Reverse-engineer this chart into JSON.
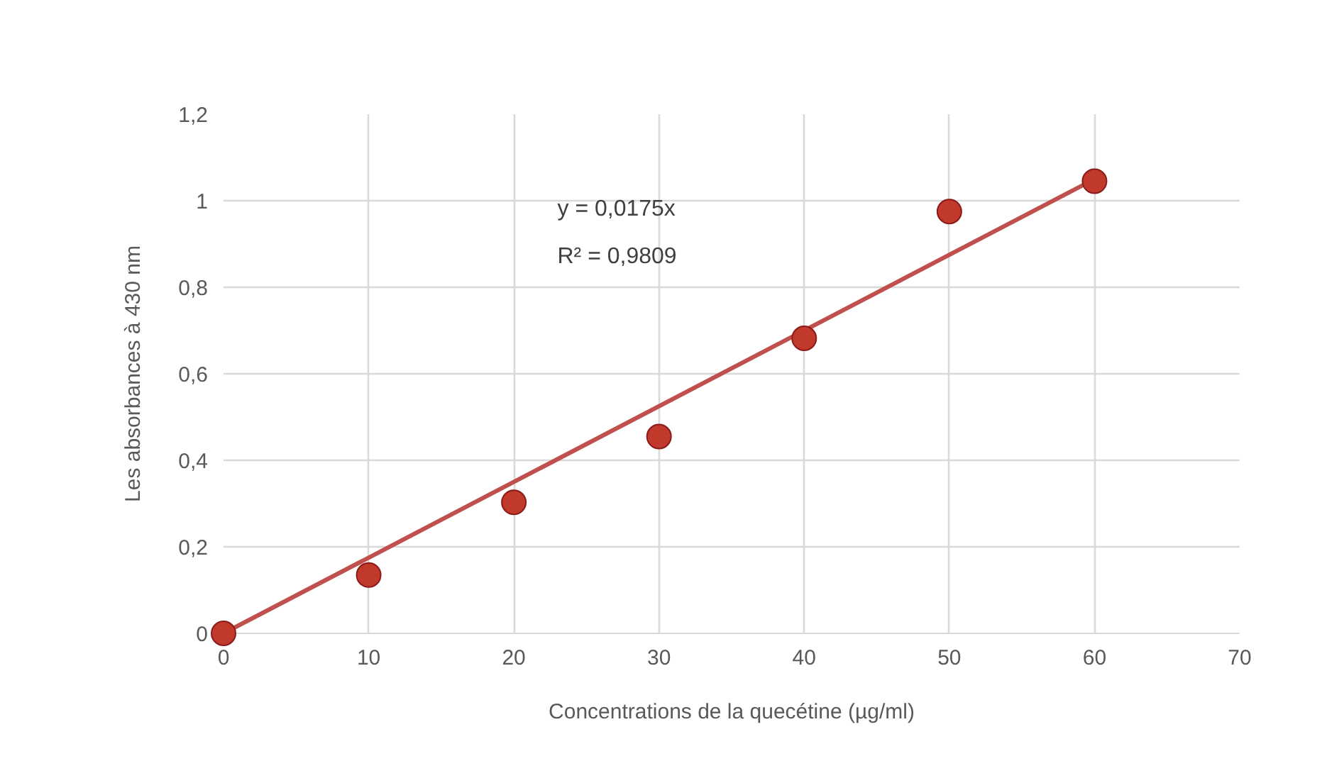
{
  "chart_data": {
    "type": "scatter",
    "xlabel": "Concentrations de la quecétine (µg/ml)",
    "ylabel": "Les absorbances à 430 nm",
    "annotations": [
      "y = 0,0175x",
      "R² = 0,9809"
    ],
    "series": [
      {
        "marker": "circle",
        "color": "#c0392b",
        "x": [
          0,
          10,
          20,
          30,
          40,
          50,
          60
        ],
        "values": [
          0,
          0.135,
          0.303,
          0.455,
          0.682,
          0.975,
          1.045
        ]
      },
      {
        "type": "line",
        "color": "#c0504d",
        "x": [
          0,
          60
        ],
        "values": [
          0,
          1.05
        ]
      }
    ],
    "xlim": [
      0,
      70
    ],
    "xticks": [
      0,
      10,
      20,
      30,
      40,
      50,
      60,
      70
    ],
    "ylim": [
      0,
      1.2
    ],
    "yticks": [
      0,
      {
        "value": 0.2,
        "label": "0,2"
      },
      {
        "value": 0.4,
        "label": "0,4"
      },
      {
        "value": 0.6,
        "label": "0,6"
      },
      {
        "value": 0.8,
        "label": "0,8"
      },
      1,
      {
        "value": 1.2,
        "label": "1,2"
      }
    ],
    "grid": true,
    "line_style": "solid"
  }
}
